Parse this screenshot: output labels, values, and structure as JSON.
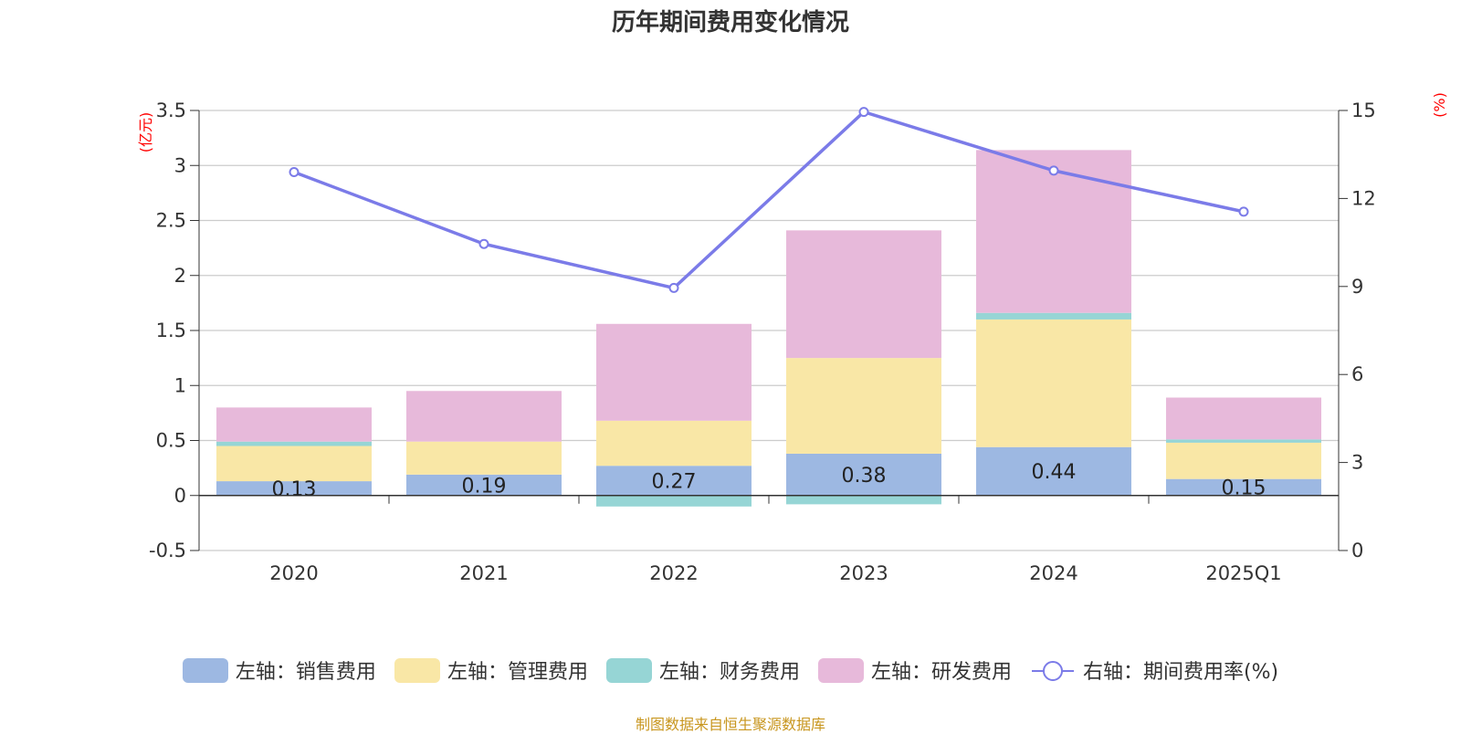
{
  "chart_data": {
    "type": "bar",
    "title": "历年期间费用变化情况",
    "categories": [
      "2020",
      "2021",
      "2022",
      "2023",
      "2024",
      "2025Q1"
    ],
    "stacked": true,
    "series": [
      {
        "name": "左轴：销售费用",
        "axis": "left",
        "color": "#9db8e2",
        "values": [
          0.13,
          0.19,
          0.27,
          0.38,
          0.44,
          0.15
        ],
        "labels": [
          "0.13",
          "0.19",
          "0.27",
          "0.38",
          "0.44",
          "0.15"
        ]
      },
      {
        "name": "左轴：管理费用",
        "axis": "left",
        "color": "#f9e7a6",
        "values": [
          0.32,
          0.3,
          0.41,
          0.87,
          1.16,
          0.33
        ]
      },
      {
        "name": "左轴：财务费用",
        "axis": "left",
        "color": "#96d5d5",
        "values": [
          0.04,
          0.0,
          -0.1,
          -0.08,
          0.06,
          0.03
        ]
      },
      {
        "name": "左轴：研发费用",
        "axis": "left",
        "color": "#e7b9da",
        "values": [
          0.31,
          0.46,
          0.88,
          1.16,
          1.48,
          0.38
        ]
      }
    ],
    "line_series": {
      "name": "右轴：期间费用率(%)",
      "axis": "right",
      "color": "#7b7be8",
      "values": [
        12.9,
        10.45,
        8.95,
        14.95,
        12.95,
        11.55
      ]
    },
    "left_axis": {
      "unit": "(亿元)",
      "ylim": [
        -0.5,
        3.5
      ],
      "ticks": [
        "3.5",
        "3",
        "2.5",
        "2",
        "1.5",
        "1",
        "0.5",
        "0",
        "-0.5"
      ],
      "tick_values": [
        3.5,
        3,
        2.5,
        2,
        1.5,
        1,
        0.5,
        0,
        -0.5
      ]
    },
    "right_axis": {
      "unit": "(%)",
      "ylim": [
        0,
        15
      ],
      "ticks": [
        "15",
        "12",
        "9",
        "6",
        "3",
        "0"
      ],
      "tick_values": [
        15,
        12,
        9,
        6,
        3,
        0
      ]
    },
    "grid": true,
    "legend_position": "bottom"
  },
  "source": "制图数据来自恒生聚源数据库"
}
